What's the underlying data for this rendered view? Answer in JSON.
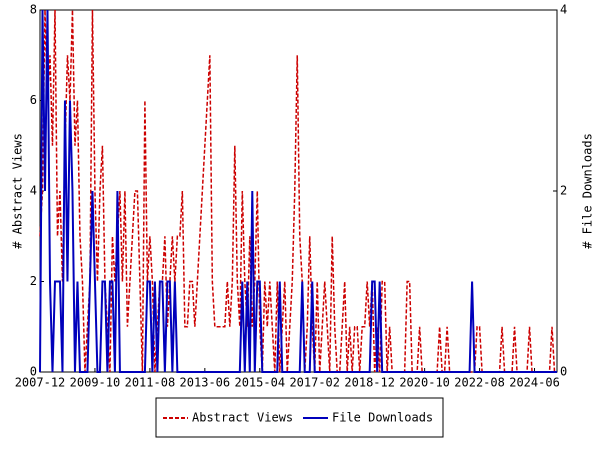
{
  "chart_data": {
    "type": "line",
    "x": [
      "2007-12",
      "2008-01",
      "2008-02",
      "2008-03",
      "2008-04",
      "2008-05",
      "2008-06",
      "2008-07",
      "2008-08",
      "2008-09",
      "2008-10",
      "2008-11",
      "2008-12",
      "2009-01",
      "2009-02",
      "2009-03",
      "2009-04",
      "2009-05",
      "2009-06",
      "2009-07",
      "2009-08",
      "2009-09",
      "2009-10",
      "2009-11",
      "2009-12",
      "2010-01",
      "2010-02",
      "2010-03",
      "2010-04",
      "2010-05",
      "2010-06",
      "2010-07",
      "2010-08",
      "2010-09",
      "2010-10",
      "2010-11",
      "2010-12",
      "2011-01",
      "2011-02",
      "2011-03",
      "2011-04",
      "2011-05",
      "2011-06",
      "2011-07",
      "2011-08",
      "2011-09",
      "2011-10",
      "2011-11",
      "2011-12",
      "2012-01",
      "2012-02",
      "2012-03",
      "2012-04",
      "2012-05",
      "2012-06",
      "2012-07",
      "2012-08",
      "2012-09",
      "2012-10",
      "2012-11",
      "2012-12",
      "2013-01",
      "2013-02",
      "2013-03",
      "2013-04",
      "2013-05",
      "2013-06",
      "2013-07",
      "2013-08",
      "2013-09",
      "2013-10",
      "2013-11",
      "2013-12",
      "2014-01",
      "2014-02",
      "2014-03",
      "2014-04",
      "2014-05",
      "2014-06",
      "2014-07",
      "2014-08",
      "2014-09",
      "2014-10",
      "2014-11",
      "2014-12",
      "2015-01",
      "2015-02",
      "2015-03",
      "2015-04",
      "2015-05",
      "2015-06",
      "2015-07",
      "2015-08",
      "2015-09",
      "2015-10",
      "2015-11",
      "2015-12",
      "2016-01",
      "2016-02",
      "2016-03",
      "2016-04",
      "2016-05",
      "2016-06",
      "2016-07",
      "2016-08",
      "2016-09",
      "2016-10",
      "2016-11",
      "2016-12",
      "2017-01",
      "2017-02",
      "2017-03",
      "2017-04",
      "2017-05",
      "2017-06",
      "2017-07",
      "2017-08",
      "2017-09",
      "2017-10",
      "2017-11",
      "2017-12",
      "2018-01",
      "2018-02",
      "2018-03",
      "2018-04",
      "2018-05",
      "2018-06",
      "2018-07",
      "2018-08",
      "2018-09",
      "2018-10",
      "2018-11",
      "2018-12",
      "2019-01",
      "2019-02",
      "2019-03",
      "2019-04",
      "2019-05",
      "2019-06",
      "2019-07",
      "2019-08",
      "2019-09",
      "2019-10",
      "2019-11",
      "2019-12",
      "2020-01",
      "2020-02",
      "2020-03",
      "2020-04",
      "2020-05",
      "2020-06",
      "2020-07",
      "2020-08",
      "2020-09",
      "2020-10",
      "2020-11",
      "2020-12",
      "2021-01",
      "2021-02",
      "2021-03",
      "2021-04",
      "2021-05",
      "2021-06",
      "2021-07",
      "2021-08",
      "2021-09",
      "2021-10",
      "2021-11",
      "2021-12",
      "2022-01",
      "2022-02",
      "2022-03",
      "2022-04",
      "2022-05",
      "2022-06",
      "2022-07",
      "2022-08",
      "2022-09",
      "2022-10",
      "2022-11",
      "2022-12",
      "2023-01",
      "2023-02",
      "2023-03",
      "2023-04",
      "2023-05",
      "2023-06",
      "2023-07",
      "2023-08",
      "2023-09",
      "2023-10",
      "2023-11",
      "2023-12",
      "2024-01",
      "2024-02",
      "2024-03",
      "2024-04",
      "2024-05",
      "2024-06",
      "2024-07",
      "2024-08",
      "2024-09",
      "2024-10",
      "2024-11",
      "2024-12",
      "2025-01",
      "2025-02",
      "2025-03"
    ],
    "series": [
      {
        "name": "Abstract Views",
        "color": "#cc0000",
        "dash": true,
        "axis": "y",
        "values": [
          3,
          4,
          8,
          6,
          7,
          5,
          8,
          3,
          4,
          2,
          5,
          7,
          6,
          8,
          5,
          6,
          3,
          2,
          0,
          1,
          2,
          8,
          4,
          2,
          4,
          5,
          2,
          1,
          0,
          3,
          2,
          3,
          4,
          2,
          4,
          1,
          2,
          3,
          4,
          4,
          2,
          0,
          6,
          2,
          3,
          2,
          0,
          1,
          2,
          2,
          3,
          1,
          2,
          3,
          2,
          3,
          3,
          4,
          1,
          1,
          2,
          2,
          1,
          2,
          3,
          4,
          5,
          6,
          7,
          2,
          1,
          1,
          1,
          1,
          1,
          2,
          1,
          2,
          5,
          2,
          1,
          4,
          2,
          1,
          3,
          1,
          2,
          4,
          1,
          0,
          2,
          1,
          2,
          1,
          0,
          2,
          0,
          1,
          2,
          0,
          1,
          2,
          4,
          7,
          3,
          2,
          0,
          1,
          3,
          1,
          0,
          2,
          0,
          1,
          2,
          1,
          0,
          3,
          1,
          0,
          0,
          1,
          2,
          0,
          1,
          0,
          1,
          1,
          0,
          1,
          1,
          2,
          1,
          2,
          0,
          1,
          0,
          2,
          2,
          0,
          1,
          0,
          0,
          0,
          0,
          0,
          0,
          2,
          2,
          0,
          0,
          0,
          1,
          0,
          0,
          0,
          0,
          0,
          0,
          0,
          1,
          0,
          0,
          1,
          0,
          0,
          0,
          0,
          0,
          0,
          0,
          0,
          0,
          0,
          0,
          1,
          1,
          0,
          0,
          0,
          0,
          0,
          0,
          0,
          0,
          1,
          0,
          0,
          0,
          0,
          1,
          0,
          0,
          0,
          0,
          0,
          1,
          0,
          0,
          0,
          0,
          0,
          0,
          0,
          0,
          1,
          0,
          0
        ]
      },
      {
        "name": "File Downloads",
        "color": "#0000bb",
        "dash": false,
        "axis": "y2",
        "values": [
          0,
          4,
          2,
          4,
          1,
          0,
          1,
          1,
          1,
          0,
          3,
          1,
          3,
          2,
          0,
          1,
          0,
          0,
          0,
          0,
          1,
          2,
          1,
          0,
          0,
          1,
          1,
          0,
          1,
          1,
          0,
          2,
          0,
          0,
          0,
          0,
          0,
          0,
          0,
          0,
          0,
          0,
          0,
          1,
          1,
          0,
          1,
          0,
          1,
          1,
          0,
          1,
          1,
          0,
          1,
          0,
          0,
          0,
          0,
          0,
          0,
          0,
          0,
          0,
          0,
          0,
          0,
          0,
          0,
          0,
          0,
          0,
          0,
          0,
          0,
          0,
          0,
          0,
          0,
          0,
          0,
          1,
          0,
          1,
          0,
          2,
          0,
          1,
          1,
          0,
          0,
          0,
          0,
          0,
          0,
          0,
          1,
          0,
          0,
          0,
          0,
          0,
          0,
          0,
          0,
          1,
          0,
          0,
          0,
          1,
          0,
          0,
          0,
          0,
          0,
          0,
          0,
          0,
          0,
          0,
          0,
          0,
          0,
          0,
          0,
          0,
          0,
          0,
          0,
          0,
          0,
          0,
          0,
          1,
          1,
          0,
          1,
          0,
          0,
          0,
          0,
          0,
          0,
          0,
          0,
          0,
          0,
          0,
          0,
          0,
          0,
          0,
          0,
          0,
          0,
          0,
          0,
          0,
          0,
          0,
          0,
          0,
          0,
          0,
          0,
          0,
          0,
          0,
          0,
          0,
          0,
          0,
          0,
          1,
          0,
          0,
          0,
          0,
          0,
          0,
          0,
          0,
          0,
          0,
          0,
          0,
          0,
          0,
          0,
          0,
          0,
          0,
          0,
          0,
          0,
          0,
          0,
          0,
          0,
          0,
          0,
          0,
          0,
          0,
          0,
          0,
          0,
          0
        ]
      }
    ],
    "xticks": [
      "2007-12",
      "2009-10",
      "2011-08",
      "2013-06",
      "2015-04",
      "2017-02",
      "2018-12",
      "2020-10",
      "2022-08",
      "2024-06"
    ],
    "ylabel": "# Abstract Views",
    "y2label": "# File Downloads",
    "ylim": [
      0,
      8
    ],
    "yticks": [
      0,
      2,
      4,
      6,
      8
    ],
    "y2lim": [
      0,
      4
    ],
    "y2ticks": [
      0,
      2,
      4
    ]
  }
}
